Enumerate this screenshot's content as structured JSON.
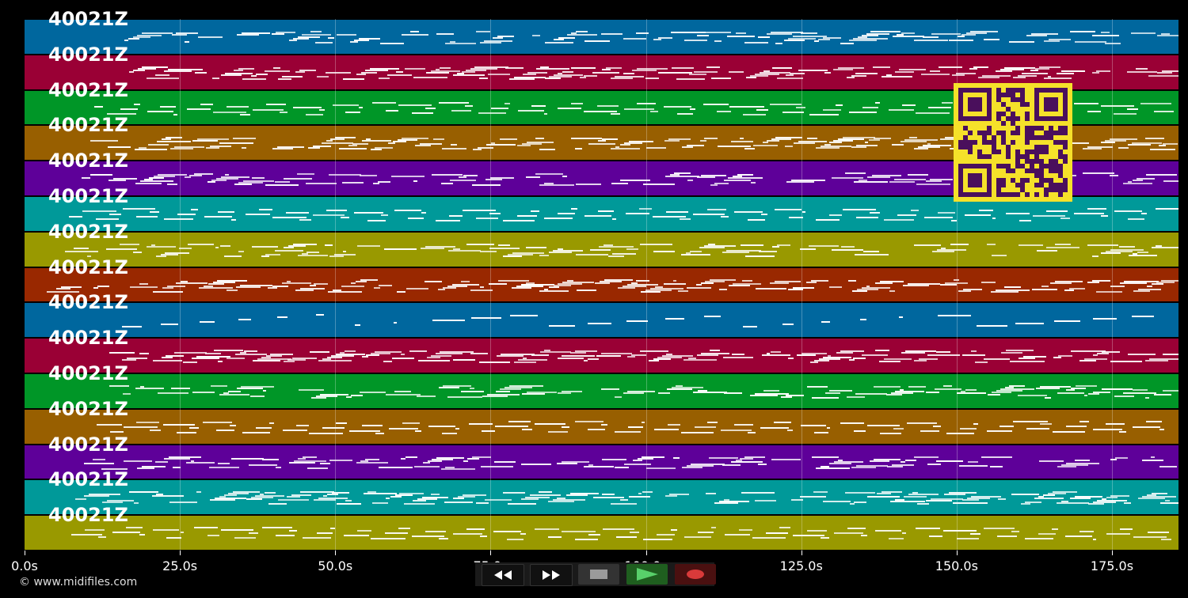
{
  "tracks": [
    {
      "label": "40021Z",
      "color": "#00679e"
    },
    {
      "label": "40021Z",
      "color": "#9a0035"
    },
    {
      "label": "40021Z",
      "color": "#009627"
    },
    {
      "label": "40021Z",
      "color": "#985f00"
    },
    {
      "label": "40021Z",
      "color": "#5e0099"
    },
    {
      "label": "40021Z",
      "color": "#009999"
    },
    {
      "label": "40021Z",
      "color": "#999900"
    },
    {
      "label": "40021Z",
      "color": "#992800"
    },
    {
      "label": "40021Z",
      "color": "#00679e"
    },
    {
      "label": "40021Z",
      "color": "#9a0035"
    },
    {
      "label": "40021Z",
      "color": "#009627"
    },
    {
      "label": "40021Z",
      "color": "#985f00"
    },
    {
      "label": "40021Z",
      "color": "#5e0099"
    },
    {
      "label": "40021Z",
      "color": "#009999"
    },
    {
      "label": "40021Z",
      "color": "#999900"
    }
  ],
  "timeline": {
    "ticks": [
      {
        "seconds": 0,
        "label": "0.0s"
      },
      {
        "seconds": 25,
        "label": "25.0s"
      },
      {
        "seconds": 50,
        "label": "50.0s"
      },
      {
        "seconds": 75,
        "label": "75.0s"
      },
      {
        "seconds": 100,
        "label": "100.0s"
      },
      {
        "seconds": 125,
        "label": "125.0s"
      },
      {
        "seconds": 150,
        "label": "150.0s"
      },
      {
        "seconds": 175,
        "label": "175.0s"
      }
    ]
  },
  "controls": [
    {
      "name": "rewind-button",
      "icon": "rewind-icon"
    },
    {
      "name": "fast-forward-button",
      "icon": "fast-forward-icon"
    },
    {
      "name": "stop-button",
      "icon": "stop-icon"
    },
    {
      "name": "play-button",
      "icon": "play-icon"
    },
    {
      "name": "record-button",
      "icon": "record-icon"
    }
  ],
  "footer": {
    "copyright": "© www.midifiles.com"
  },
  "qr_icon": "qr-code-icon"
}
